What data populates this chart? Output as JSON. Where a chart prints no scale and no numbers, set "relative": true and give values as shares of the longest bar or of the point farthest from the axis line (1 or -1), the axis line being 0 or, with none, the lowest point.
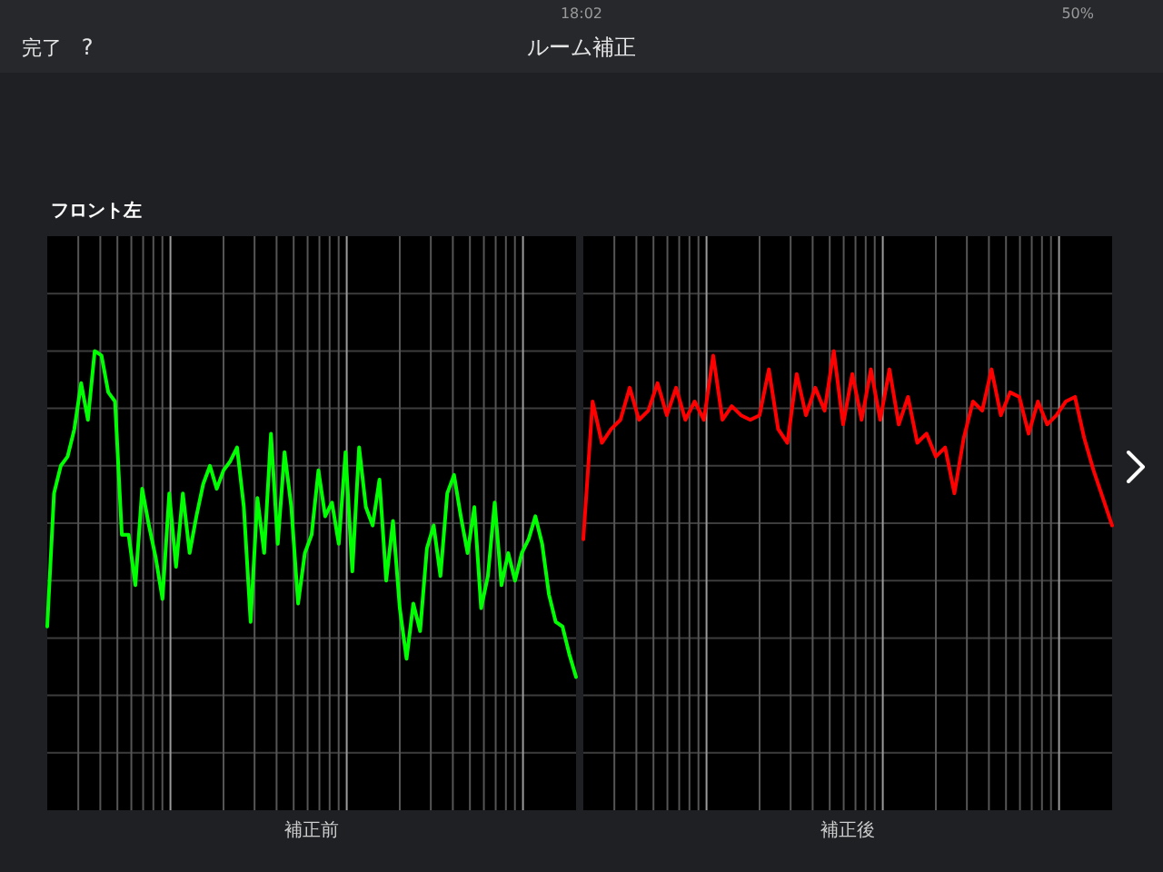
{
  "chart_data": [
    {
      "type": "line",
      "relative": true,
      "grid": true,
      "title": "フロント左",
      "xlabel": "補正前",
      "color": "#00ff00",
      "annotations": [
        "完了",
        "?",
        "ルーム補正",
        "18:02",
        "50%"
      ],
      "categories": [
        null,
        null,
        null,
        null,
        null,
        null,
        null,
        null,
        null,
        null,
        null,
        null,
        null,
        null,
        null,
        null,
        null,
        null,
        null,
        null,
        null,
        null,
        null,
        null,
        null,
        null,
        null,
        null,
        null,
        null,
        null,
        null,
        null,
        null,
        null,
        null,
        null,
        null,
        null,
        null,
        null,
        null,
        null,
        null,
        null,
        null,
        null,
        null,
        null,
        null,
        null,
        null,
        null,
        null,
        null,
        null,
        null,
        null,
        null,
        null,
        null,
        null,
        null,
        null,
        null,
        null,
        null,
        null,
        null,
        null,
        null,
        null,
        null,
        null,
        null,
        null,
        null,
        null,
        null
      ],
      "values": [
        0.4,
        0.69,
        0.75,
        0.77,
        0.83,
        0.93,
        0.85,
        1.0,
        0.99,
        0.91,
        0.89,
        0.6,
        0.6,
        0.49,
        0.7,
        0.62,
        0.55,
        0.46,
        0.69,
        0.53,
        0.69,
        0.56,
        0.64,
        0.71,
        0.75,
        0.7,
        0.74,
        0.76,
        0.79,
        0.66,
        0.41,
        0.68,
        0.56,
        0.82,
        0.58,
        0.78,
        0.66,
        0.45,
        0.56,
        0.6,
        0.74,
        0.64,
        0.67,
        0.58,
        0.78,
        0.52,
        0.79,
        0.66,
        0.62,
        0.72,
        0.5,
        0.63,
        0.44,
        0.33,
        0.45,
        0.39,
        0.57,
        0.62,
        0.51,
        0.69,
        0.73,
        0.64,
        0.56,
        0.66,
        0.44,
        0.51,
        0.67,
        0.49,
        0.56,
        0.5,
        0.56,
        0.59,
        0.64,
        0.58,
        0.47,
        0.41,
        0.4,
        0.34,
        0.29
      ]
    },
    {
      "type": "line",
      "relative": true,
      "grid": true,
      "xlabel": "補正後",
      "color": "#ff0000",
      "categories": [
        null,
        null,
        null,
        null,
        null,
        null,
        null,
        null,
        null,
        null,
        null,
        null,
        null,
        null,
        null,
        null,
        null,
        null,
        null,
        null,
        null,
        null,
        null,
        null,
        null,
        null,
        null,
        null,
        null,
        null,
        null,
        null,
        null,
        null,
        null,
        null,
        null,
        null,
        null,
        null,
        null,
        null,
        null,
        null,
        null,
        null,
        null,
        null,
        null,
        null,
        null,
        null,
        null,
        null,
        null,
        null,
        null,
        null
      ],
      "values": [
        0.59,
        0.89,
        0.8,
        0.83,
        0.85,
        0.92,
        0.85,
        0.87,
        0.93,
        0.86,
        0.92,
        0.85,
        0.89,
        0.85,
        0.99,
        0.85,
        0.88,
        0.86,
        0.85,
        0.86,
        0.96,
        0.83,
        0.8,
        0.95,
        0.86,
        0.92,
        0.87,
        1.0,
        0.84,
        0.95,
        0.85,
        0.96,
        0.85,
        0.96,
        0.84,
        0.9,
        0.8,
        0.82,
        0.77,
        0.79,
        0.69,
        0.81,
        0.89,
        0.87,
        0.96,
        0.86,
        0.91,
        0.9,
        0.82,
        0.89,
        0.84,
        0.86,
        0.89,
        0.9,
        0.81,
        0.74,
        0.68,
        0.62
      ]
    }
  ]
}
